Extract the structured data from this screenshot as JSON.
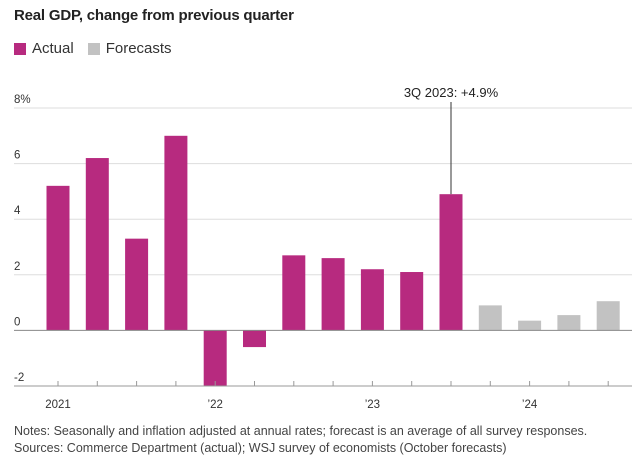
{
  "title": "Real GDP, change from previous quarter",
  "legend": {
    "actual_label": "Actual",
    "forecast_label": "Forecasts"
  },
  "colors": {
    "actual": "#b72a7f",
    "forecast": "#c2c2c2",
    "grid": "#dddddd",
    "zero_line": "#888888",
    "text": "#333333"
  },
  "annotation": "3Q 2023: +4.9%",
  "notes": {
    "line1": "Notes: Seasonally and inflation adjusted at annual rates; forecast is an average of all survey responses.",
    "line2": "Sources: Commerce Department (actual); WSJ survey of economists (October forecasts)"
  },
  "chart_data": {
    "type": "bar",
    "title": "Real GDP, change from previous quarter",
    "categories": [
      "1Q 2021",
      "2Q 2021",
      "3Q 2021",
      "4Q 2021",
      "1Q 2022",
      "2Q 2022",
      "3Q 2022",
      "4Q 2022",
      "1Q 2023",
      "2Q 2023",
      "3Q 2023",
      "4Q 2023",
      "1Q 2024",
      "2Q 2024",
      "3Q 2024"
    ],
    "values": [
      5.2,
      6.2,
      3.3,
      7.0,
      -2.0,
      -0.6,
      2.7,
      2.6,
      2.2,
      2.1,
      4.9,
      0.9,
      0.35,
      0.55,
      1.05
    ],
    "kinds": [
      "actual",
      "actual",
      "actual",
      "actual",
      "actual",
      "actual",
      "actual",
      "actual",
      "actual",
      "actual",
      "actual",
      "forecast",
      "forecast",
      "forecast",
      "forecast"
    ],
    "series": [
      {
        "name": "Actual"
      },
      {
        "name": "Forecasts"
      }
    ],
    "ylim": [
      -2,
      8
    ],
    "yticks": [
      -2,
      0,
      2,
      4,
      6,
      8
    ],
    "ytick_labels": [
      "-2",
      "0",
      "2",
      "4",
      "6",
      "8%"
    ],
    "xtick_labels": [
      "2021",
      "’22",
      "’23",
      "’24"
    ],
    "xlabel": "",
    "ylabel": "",
    "grid": true,
    "legend_position": "top-left"
  }
}
